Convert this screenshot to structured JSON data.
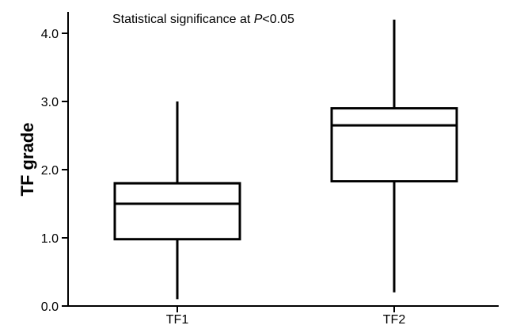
{
  "chart_data": {
    "type": "box",
    "ylabel": "TF grade",
    "xlabel": "",
    "ylim": [
      0,
      4.3
    ],
    "yticks": [
      {
        "value": 0,
        "label": "0.0"
      },
      {
        "value": 1,
        "label": "1.0"
      },
      {
        "value": 2,
        "label": "2.0"
      },
      {
        "value": 3,
        "label": "3.0"
      },
      {
        "value": 4,
        "label": "4.0"
      }
    ],
    "annotation": {
      "prefix": "Statistical significance at ",
      "italic": "P",
      "suffix": "<0.05"
    },
    "grid": false,
    "boxes": [
      {
        "category": "TF1",
        "min": 0.1,
        "q1": 0.98,
        "median": 1.5,
        "q3": 1.8,
        "max": 3.0
      },
      {
        "category": "TF2",
        "min": 0.2,
        "q1": 1.83,
        "median": 2.65,
        "q3": 2.9,
        "max": 4.2
      }
    ]
  }
}
